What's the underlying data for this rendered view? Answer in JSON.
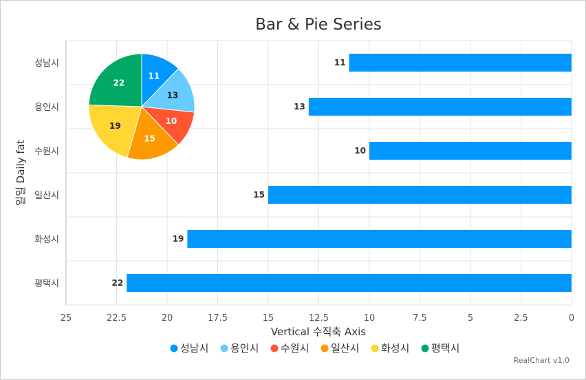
{
  "chart_data": {
    "type": "bar",
    "title": "Bar & Pie Series",
    "xlabel": "Vertical 수직축 Axis",
    "ylabel": "일일 Daily fat",
    "orientation": "horizontal",
    "value_axis_reversed": true,
    "xlim": [
      0,
      25
    ],
    "x_ticks": [
      "25",
      "22.5",
      "20",
      "17.5",
      "15",
      "12.5",
      "10",
      "7.5",
      "5",
      "2.5",
      "0"
    ],
    "categories": [
      "성남시",
      "용인시",
      "수원시",
      "일산시",
      "화성시",
      "평택시"
    ],
    "values": [
      11,
      13,
      10,
      15,
      19,
      22
    ],
    "bar_color": "#0098ff",
    "pie": {
      "type": "pie",
      "labels": [
        "성남시",
        "용인시",
        "수원시",
        "일산시",
        "화성시",
        "평택시"
      ],
      "values": [
        11,
        13,
        10,
        15,
        19,
        22
      ],
      "colors": [
        "#0098ff",
        "#66ccff",
        "#ff5533",
        "#ff9900",
        "#ffd633",
        "#00aa66"
      ]
    },
    "legend": {
      "position": "bottom",
      "items": [
        "성남시",
        "용인시",
        "수원시",
        "일산시",
        "화성시",
        "평택시"
      ]
    },
    "grid": true
  },
  "credit": "RealChart v1.0"
}
